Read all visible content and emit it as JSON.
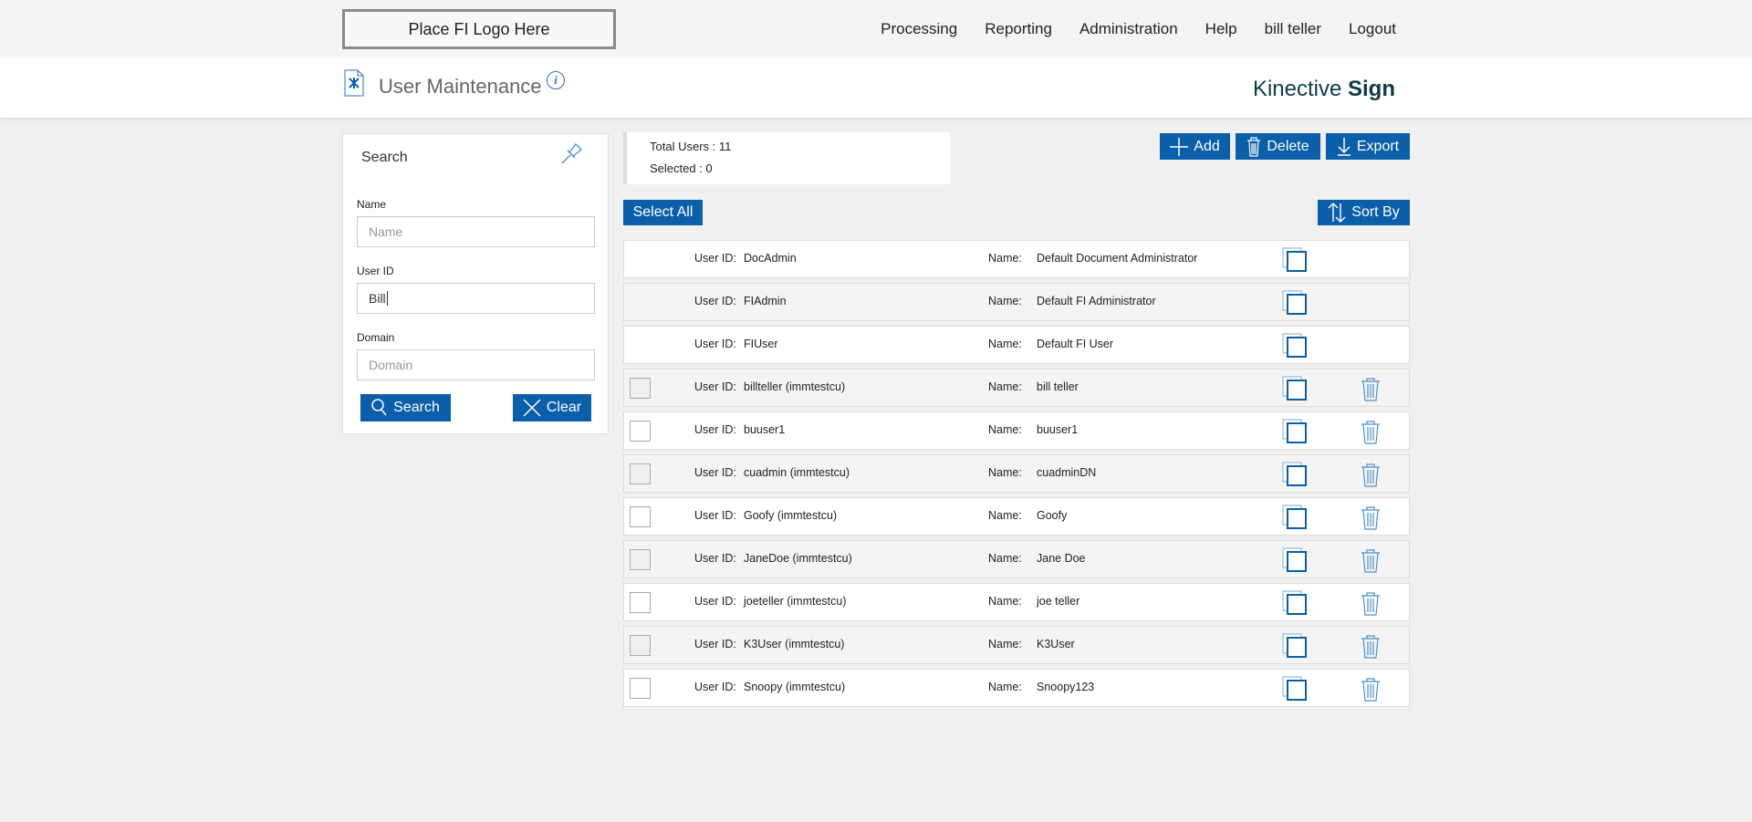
{
  "topbar": {
    "logo": "Place FI Logo Here",
    "nav": [
      "Processing",
      "Reporting",
      "Administration",
      "Help",
      "bill teller",
      "Logout"
    ]
  },
  "header": {
    "title": "User Maintenance",
    "brand_light": "Kinective ",
    "brand_bold": "Sign",
    "info_icon": "i"
  },
  "search": {
    "title": "Search",
    "name_label": "Name",
    "name_placeholder": "Name",
    "name_value": "",
    "userid_label": "User ID",
    "userid_value": "Bill",
    "domain_label": "Domain",
    "domain_placeholder": "Domain",
    "domain_value": "",
    "search_button": "Search",
    "clear_button": "Clear"
  },
  "stats": {
    "total": "Total Users : 11",
    "selected": "Selected : 0"
  },
  "toolbar": {
    "add": "Add",
    "delete": "Delete",
    "export": "Export",
    "select_all": "Select All",
    "sort_by": "Sort By"
  },
  "accent": "#0a5fa8",
  "users": [
    {
      "uid_label": "User ID:",
      "uid": "DocAdmin",
      "name_label": "Name:",
      "name": "Default Document Administrator",
      "selectable": false
    },
    {
      "uid_label": "User ID:",
      "uid": "FIAdmin",
      "name_label": "Name:",
      "name": "Default FI Administrator",
      "selectable": false
    },
    {
      "uid_label": "User ID:",
      "uid": "FIUser",
      "name_label": "Name:",
      "name": "Default FI User",
      "selectable": false
    },
    {
      "uid_label": "User ID:",
      "uid": "billteller (immtestcu)",
      "name_label": "Name:",
      "name": "bill teller",
      "selectable": true
    },
    {
      "uid_label": "User ID:",
      "uid": "buuser1",
      "name_label": "Name:",
      "name": "buuser1",
      "selectable": true
    },
    {
      "uid_label": "User ID:",
      "uid": "cuadmin (immtestcu)",
      "name_label": "Name:",
      "name": "cuadminDN",
      "selectable": true
    },
    {
      "uid_label": "User ID:",
      "uid": "Goofy (immtestcu)",
      "name_label": "Name:",
      "name": "Goofy",
      "selectable": true
    },
    {
      "uid_label": "User ID:",
      "uid": "JaneDoe (immtestcu)",
      "name_label": "Name:",
      "name": "Jane Doe",
      "selectable": true
    },
    {
      "uid_label": "User ID:",
      "uid": "joeteller (immtestcu)",
      "name_label": "Name:",
      "name": "joe teller",
      "selectable": true
    },
    {
      "uid_label": "User ID:",
      "uid": "K3User (immtestcu)",
      "name_label": "Name:",
      "name": "K3User",
      "selectable": true
    },
    {
      "uid_label": "User ID:",
      "uid": "Snoopy (immtestcu)",
      "name_label": "Name:",
      "name": "Snoopy123",
      "selectable": true
    }
  ]
}
